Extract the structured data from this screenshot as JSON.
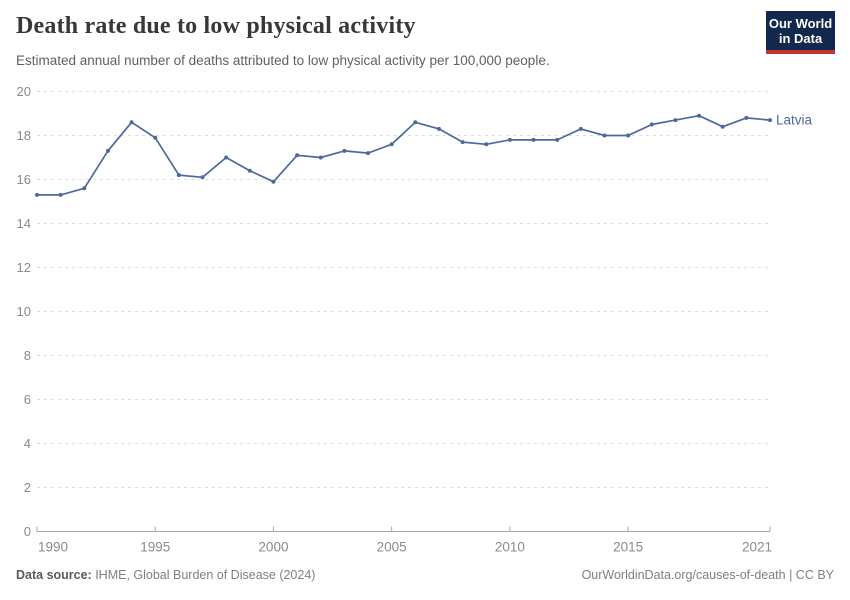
{
  "header": {
    "title": "Death rate due to low physical activity",
    "subtitle": "Estimated annual number of deaths attributed to low physical activity per 100,000 people."
  },
  "logo": {
    "line1": "Our World",
    "line2": "in Data",
    "bg_color": "#12294d",
    "accent_color": "#c0372e"
  },
  "chart_data": {
    "type": "line",
    "title": "Death rate due to low physical activity",
    "x": [
      1990,
      1991,
      1992,
      1993,
      1994,
      1995,
      1996,
      1997,
      1998,
      1999,
      2000,
      2001,
      2002,
      2003,
      2004,
      2005,
      2006,
      2007,
      2008,
      2009,
      2010,
      2011,
      2012,
      2013,
      2014,
      2015,
      2016,
      2017,
      2018,
      2019,
      2020,
      2021
    ],
    "series": [
      {
        "name": "Latvia",
        "color": "#4C6A9C",
        "values": [
          15.3,
          15.3,
          15.6,
          17.3,
          18.6,
          17.9,
          16.2,
          16.1,
          17.0,
          16.4,
          15.9,
          17.1,
          17.0,
          17.3,
          17.2,
          17.6,
          18.6,
          18.3,
          17.7,
          17.6,
          17.8,
          17.8,
          17.8,
          18.3,
          18.0,
          18.0,
          18.5,
          18.7,
          18.9,
          18.4,
          18.8,
          18.7
        ]
      }
    ],
    "xlim": [
      1990,
      2021
    ],
    "ylim": [
      0,
      20
    ],
    "yticks": [
      0,
      2,
      4,
      6,
      8,
      10,
      12,
      14,
      16,
      18,
      20
    ],
    "xticks": [
      1990,
      1995,
      2000,
      2005,
      2010,
      2015,
      2021
    ],
    "grid": "horizontal dashed",
    "legend": "inline label at line end",
    "colors": {
      "line": "#4C6A9C",
      "gridline": "#dcdcdc",
      "axis_line": "#a8a8a8",
      "tick_text": "#8b8b8b"
    }
  },
  "footer": {
    "source_label": "Data source:",
    "source_value": " IHME, Global Burden of Disease (2024)",
    "right_text": "OurWorldinData.org/causes-of-death | CC BY"
  }
}
